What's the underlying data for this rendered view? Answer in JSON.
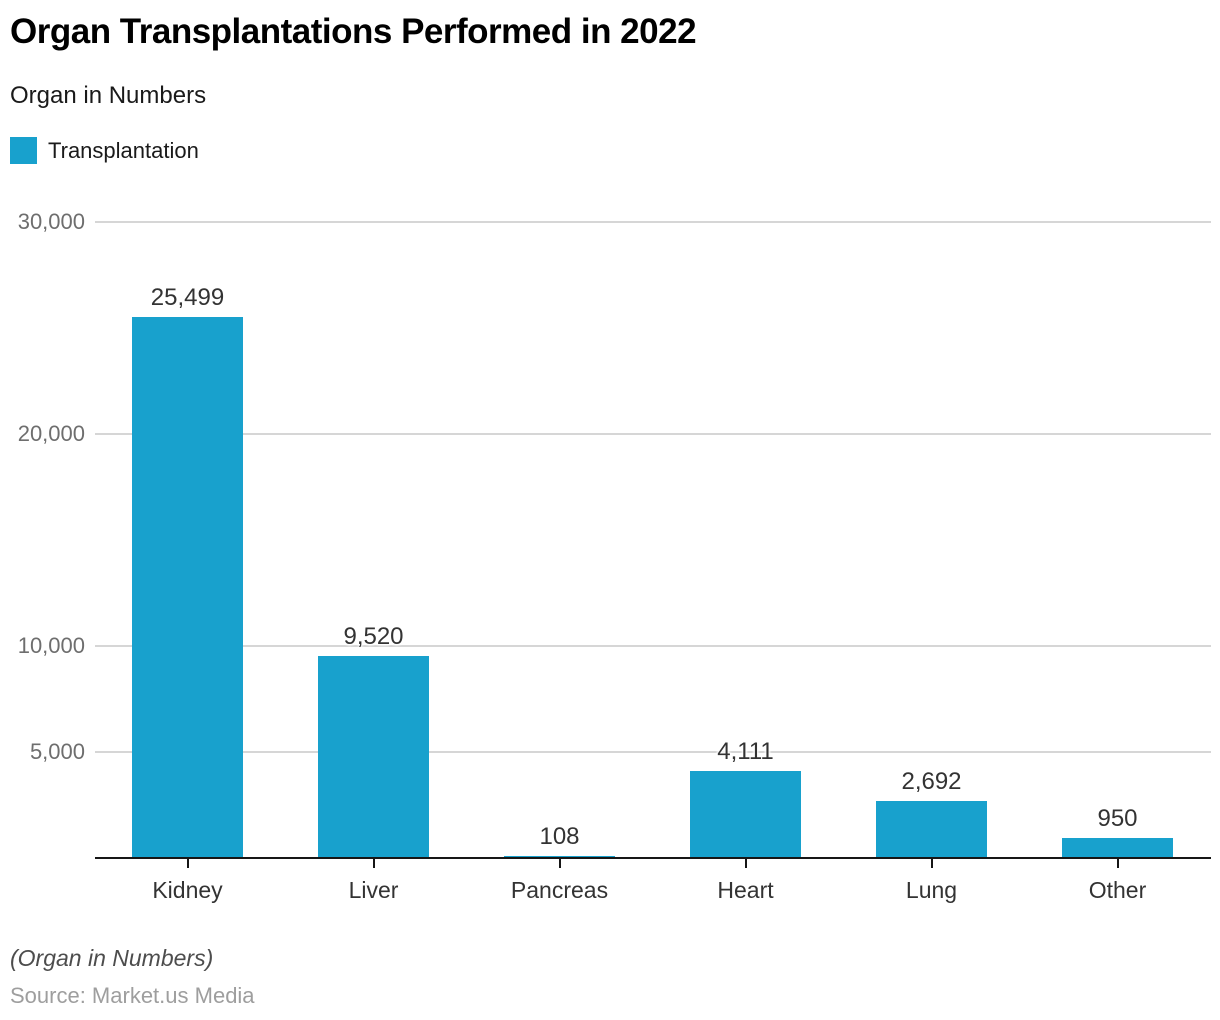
{
  "header": {
    "title": "Organ Transplantations Performed in 2022",
    "subtitle": "Organ in Numbers",
    "legend": {
      "label": "Transplantation",
      "color": "#18a1cd"
    }
  },
  "chart_data": {
    "type": "bar",
    "title": "Organ Transplantations Performed in 2022",
    "subtitle": "Organ in Numbers",
    "series_name": "Transplantation",
    "categories": [
      "Kidney",
      "Liver",
      "Pancreas",
      "Heart",
      "Lung",
      "Other"
    ],
    "values": [
      25499,
      9520,
      108,
      4111,
      2692,
      950
    ],
    "value_labels": [
      "25,499",
      "9,520",
      "108",
      "4,111",
      "2,692",
      "950"
    ],
    "xlabel": "",
    "ylabel": "",
    "ylim": [
      0,
      30000
    ],
    "yticks": [
      {
        "value": 5000,
        "label": "5,000"
      },
      {
        "value": 10000,
        "label": "10,000"
      },
      {
        "value": 20000,
        "label": "20,000"
      },
      {
        "value": 30000,
        "label": "30,000"
      }
    ],
    "grid": true,
    "legend_position": "top-left",
    "bar_color": "#18a1cd",
    "gridline_color": "#d6d6d6",
    "axis_color": "#161616"
  },
  "footer": {
    "note": "(Organ in Numbers)",
    "source": "Source: Market.us Media"
  }
}
